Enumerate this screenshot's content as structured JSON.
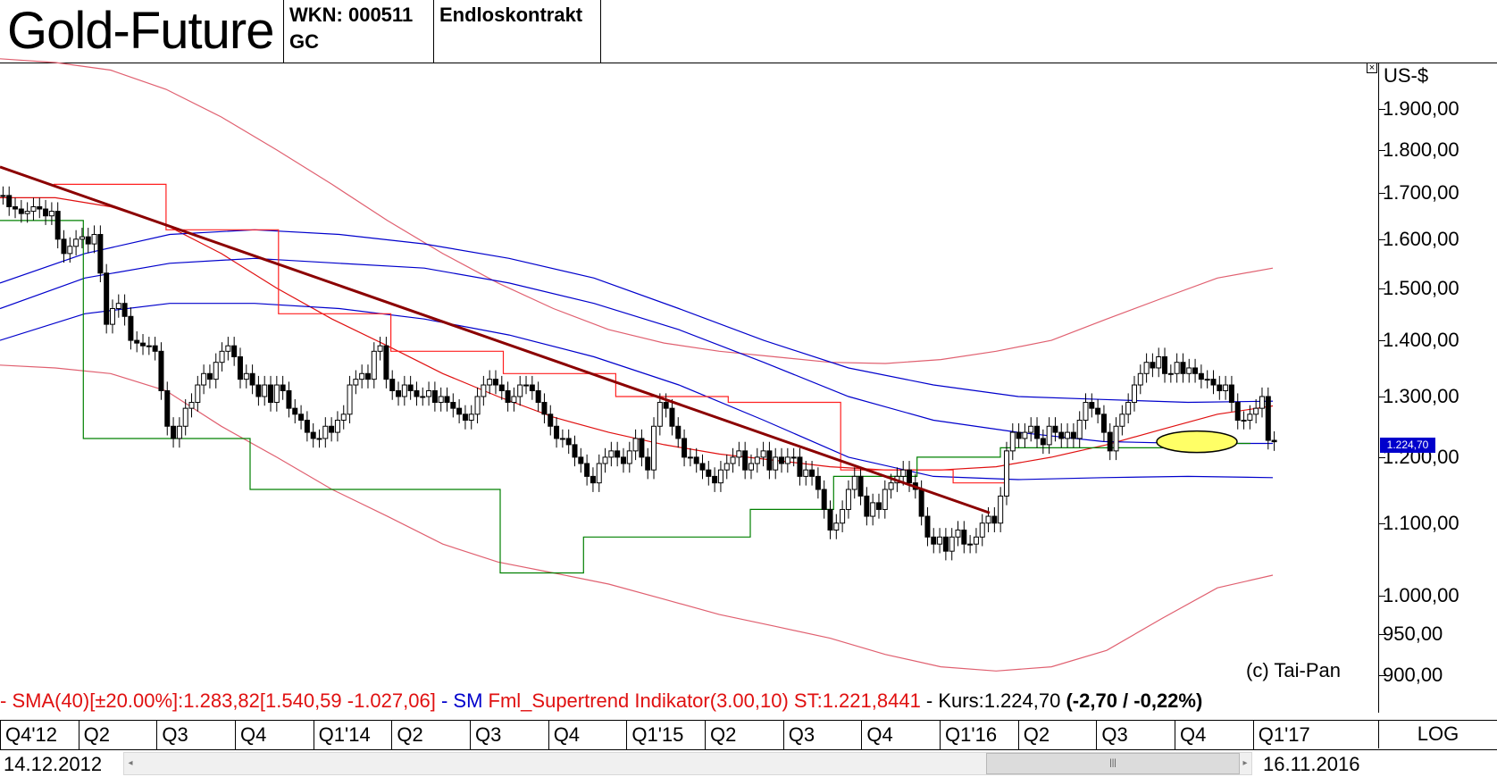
{
  "header": {
    "title": "Gold-Future",
    "wkn": "WKN: 000511",
    "symbol": "GC",
    "contract_type": "Endloskontrakt"
  },
  "axis": {
    "unit": "US-$",
    "scale_button": "LOG",
    "close_icon": "close-box-icon",
    "price_tag": "1.224,70"
  },
  "legend": {
    "sma_prefix": "- SMA(40)[±20.00%]:1.283,82[1.540,59 -1.027,06]",
    "sm_prefix": " - SM ",
    "supertrend": "Fml_Supertrend Indikator(3.00,10) ST:1.221,8441",
    "kurs_prefix": " - Kurs:1.224,70 ",
    "kurs_change": "(-2,70 / -0,22%)",
    "color_red": "#e01010",
    "color_blue": "#0000cc"
  },
  "copyright": "(c) Tai-Pan",
  "footer": {
    "start_date": "14.12.2012",
    "end_date": "16.11.2016",
    "scroll_left_icon": "arrow-left-icon",
    "scroll_right_icon": "arrow-right-icon",
    "scroll_grip": "|||"
  },
  "chart_data": {
    "type": "candlestick",
    "y_scale": "log",
    "ylim": [
      880,
      2100
    ],
    "ytick_labels": [
      "1.900,00",
      "1.800,00",
      "1.700,00",
      "1.600,00",
      "1.500,00",
      "1.400,00",
      "1.300,00",
      "1.200,00",
      "1.100,00",
      "1.000,00",
      "950,00",
      "900,00"
    ],
    "ytick_values": [
      1900,
      1800,
      1700,
      1600,
      1500,
      1400,
      1300,
      1200,
      1100,
      1000,
      950,
      900
    ],
    "x_quarters": [
      "Q4'12",
      "Q2",
      "Q3",
      "Q4",
      "Q1'14",
      "Q2",
      "Q3",
      "Q4",
      "Q1'15",
      "Q2",
      "Q3",
      "Q4",
      "Q1'16",
      "Q2",
      "Q3",
      "Q4",
      "Q1'17"
    ],
    "x_range": [
      "14.12.2012",
      "16.11.2016"
    ],
    "last_close": 1224.7,
    "change": -2.7,
    "change_pct": -0.22,
    "weekly_close": [
      1695,
      1670,
      1665,
      1655,
      1660,
      1670,
      1665,
      1650,
      1660,
      1600,
      1570,
      1585,
      1600,
      1605,
      1590,
      1610,
      1530,
      1430,
      1460,
      1470,
      1445,
      1400,
      1395,
      1390,
      1390,
      1380,
      1310,
      1250,
      1230,
      1250,
      1280,
      1290,
      1320,
      1340,
      1330,
      1360,
      1380,
      1390,
      1370,
      1330,
      1340,
      1320,
      1300,
      1320,
      1290,
      1320,
      1310,
      1280,
      1270,
      1260,
      1240,
      1230,
      1230,
      1250,
      1240,
      1260,
      1270,
      1320,
      1330,
      1340,
      1330,
      1380,
      1390,
      1330,
      1310,
      1300,
      1320,
      1310,
      1300,
      1300,
      1310,
      1290,
      1300,
      1290,
      1280,
      1270,
      1260,
      1270,
      1300,
      1320,
      1330,
      1320,
      1310,
      1290,
      1300,
      1320,
      1320,
      1310,
      1290,
      1270,
      1250,
      1230,
      1230,
      1220,
      1200,
      1190,
      1170,
      1160,
      1190,
      1200,
      1210,
      1200,
      1190,
      1210,
      1230,
      1200,
      1180,
      1250,
      1290,
      1280,
      1250,
      1230,
      1200,
      1200,
      1190,
      1180,
      1170,
      1160,
      1180,
      1190,
      1200,
      1210,
      1180,
      1190,
      1200,
      1210,
      1180,
      1200,
      1190,
      1200,
      1200,
      1170,
      1180,
      1170,
      1150,
      1120,
      1090,
      1100,
      1120,
      1150,
      1170,
      1140,
      1110,
      1130,
      1120,
      1150,
      1160,
      1170,
      1180,
      1160,
      1150,
      1110,
      1080,
      1070,
      1080,
      1060,
      1080,
      1090,
      1070,
      1070,
      1080,
      1100,
      1110,
      1100,
      1140,
      1210,
      1240,
      1230,
      1240,
      1250,
      1230,
      1220,
      1250,
      1240,
      1230,
      1240,
      1230,
      1260,
      1290,
      1280,
      1270,
      1240,
      1210,
      1250,
      1270,
      1290,
      1320,
      1340,
      1360,
      1350,
      1370,
      1340,
      1340,
      1360,
      1340,
      1350,
      1340,
      1330,
      1330,
      1320,
      1310,
      1320,
      1290,
      1260,
      1260,
      1270,
      1280,
      1300,
      1227,
      1224.7
    ],
    "sma_upper_band": [
      2030,
      2020,
      2000,
      1950,
      1880,
      1800,
      1720,
      1640,
      1570,
      1510,
      1460,
      1420,
      1395,
      1380,
      1370,
      1360,
      1358,
      1365,
      1380,
      1400,
      1440,
      1480,
      1520,
      1540
    ],
    "sma_center": [
      1690,
      1690,
      1670,
      1630,
      1570,
      1500,
      1440,
      1390,
      1340,
      1300,
      1265,
      1240,
      1220,
      1205,
      1195,
      1185,
      1180,
      1180,
      1185,
      1200,
      1220,
      1245,
      1270,
      1284
    ],
    "sma_lower_band": [
      1355,
      1350,
      1340,
      1310,
      1250,
      1200,
      1150,
      1110,
      1070,
      1045,
      1030,
      1015,
      995,
      975,
      960,
      945,
      925,
      910,
      905,
      910,
      930,
      970,
      1010,
      1027
    ],
    "supertrend_short_stops": [
      1720,
      1720,
      1620,
      1620,
      1450,
      1450,
      1380,
      1380,
      1340,
      1340,
      1300,
      1300,
      1290,
      1290,
      1180,
      1180,
      1160
    ],
    "supertrend_long_stops": [
      1640,
      1230,
      1230,
      1150,
      1150,
      1150,
      1030,
      1080,
      1080,
      1120,
      1170,
      1200,
      1215,
      1215,
      1222
    ],
    "trendline": {
      "from": {
        "date": "Q4'12",
        "price": 1760
      },
      "to": {
        "date": "Q1'16",
        "price": 1115
      }
    },
    "blue_sma_lines": [
      {
        "values": [
          1510,
          1570,
          1610,
          1620,
          1610,
          1590,
          1560,
          1520,
          1460,
          1400,
          1350,
          1320,
          1300,
          1295,
          1290,
          1292
        ]
      },
      {
        "values": [
          1460,
          1520,
          1550,
          1560,
          1550,
          1540,
          1510,
          1470,
          1420,
          1360,
          1300,
          1260,
          1240,
          1225,
          1222,
          1222
        ]
      },
      {
        "values": [
          1400,
          1450,
          1470,
          1470,
          1460,
          1440,
          1410,
          1370,
          1320,
          1260,
          1200,
          1170,
          1165,
          1168,
          1170,
          1168
        ]
      }
    ]
  }
}
